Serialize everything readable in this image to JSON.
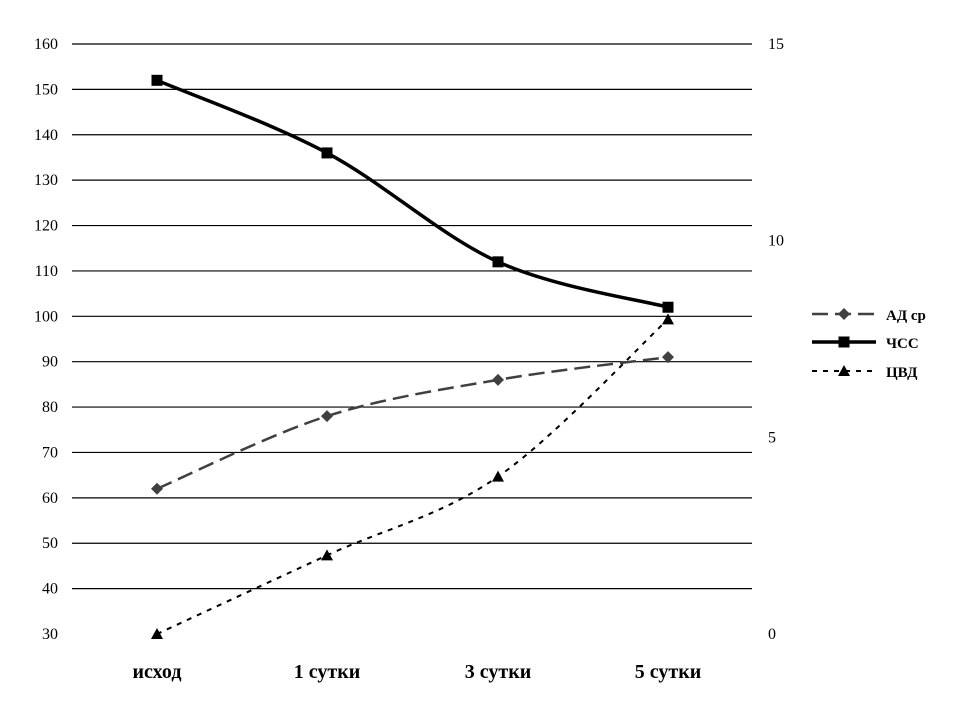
{
  "chart_data": {
    "type": "line",
    "categories": [
      "исход",
      "1 сутки",
      "3 сутки",
      "5 сутки"
    ],
    "y_left": {
      "min": 30,
      "max": 160,
      "step": 10
    },
    "y_right": {
      "min": 0,
      "max": 15,
      "ticks": [
        0,
        5,
        10,
        15
      ]
    },
    "grid": true,
    "legend_position": "right",
    "series": [
      {
        "name": "АД ср",
        "axis": "left",
        "values": [
          62,
          78,
          86,
          91
        ],
        "style": "dashed",
        "marker": "diamond",
        "color": "#404040"
      },
      {
        "name": "ЧСС",
        "axis": "left",
        "values": [
          152,
          136,
          112,
          102
        ],
        "style": "solid",
        "marker": "square",
        "color": "#000000"
      },
      {
        "name": "ЦВД",
        "axis": "right",
        "values": [
          0,
          2,
          4,
          8
        ],
        "style": "dotted",
        "marker": "triangle",
        "color": "#000000"
      }
    ]
  }
}
